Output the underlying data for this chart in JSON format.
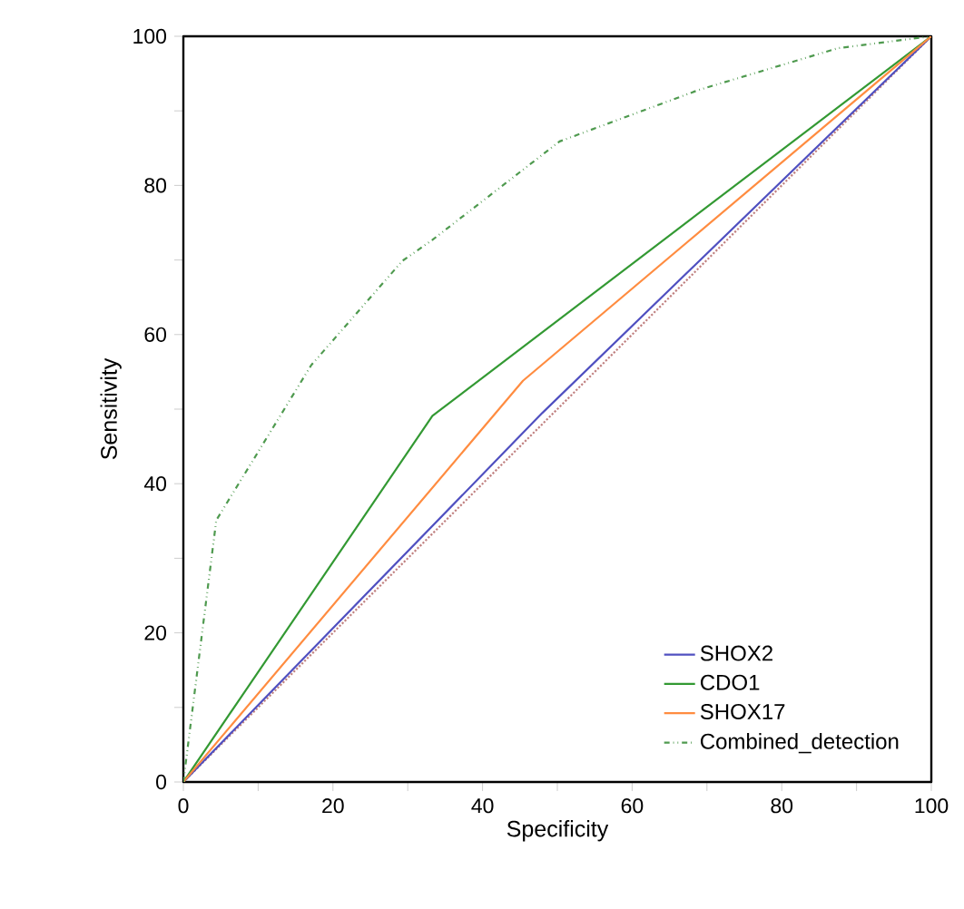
{
  "chart_data": {
    "type": "line",
    "xlabel": "Specificity",
    "ylabel": "Sensitivity",
    "xlim": [
      0,
      100
    ],
    "ylim": [
      0,
      100
    ],
    "xticks": [
      0,
      {
        "value": 10,
        "label": null
      },
      20,
      {
        "value": 30,
        "label": null
      },
      40,
      {
        "value": 50,
        "label": null
      },
      60,
      {
        "value": 70,
        "label": null
      },
      80,
      {
        "value": 90,
        "label": null
      },
      100
    ],
    "yticks": [
      0,
      {
        "value": 10,
        "label": null
      },
      20,
      {
        "value": 30,
        "label": null
      },
      40,
      {
        "value": 50,
        "label": null
      },
      60,
      {
        "value": 70,
        "label": null
      },
      80,
      {
        "value": 90,
        "label": null
      },
      100
    ],
    "grid": false,
    "legend": "bottom right",
    "marker": "none",
    "series": [
      {
        "color": "#c08080",
        "line_style": "dotted",
        "x": [
          0,
          100
        ],
        "values": [
          0,
          100
        ]
      },
      {
        "name": "SHOX2",
        "color": "#5050c0",
        "line_style": "solid",
        "x": [
          0,
          48,
          100
        ],
        "values": [
          0,
          49.5,
          100
        ]
      },
      {
        "name": "CDO1",
        "color": "#339933",
        "line_style": "solid",
        "x": [
          0,
          33.3,
          100
        ],
        "values": [
          0,
          49.1,
          100
        ]
      },
      {
        "name": "SHOX17",
        "color": "#ff8c40",
        "line_style": "solid",
        "x": [
          0,
          45.4,
          100
        ],
        "values": [
          0,
          53.8,
          100
        ]
      },
      {
        "name": "Combined_detection",
        "color": "#4f9a4f",
        "line_style": "dashdot",
        "x": [
          0,
          4.4,
          17.1,
          29.3,
          33.3,
          50.3,
          59.2,
          68.9,
          87.5,
          100
        ],
        "values": [
          0,
          35.1,
          55.9,
          69.9,
          72.7,
          85.9,
          89.2,
          92.8,
          98.4,
          100
        ]
      }
    ]
  }
}
